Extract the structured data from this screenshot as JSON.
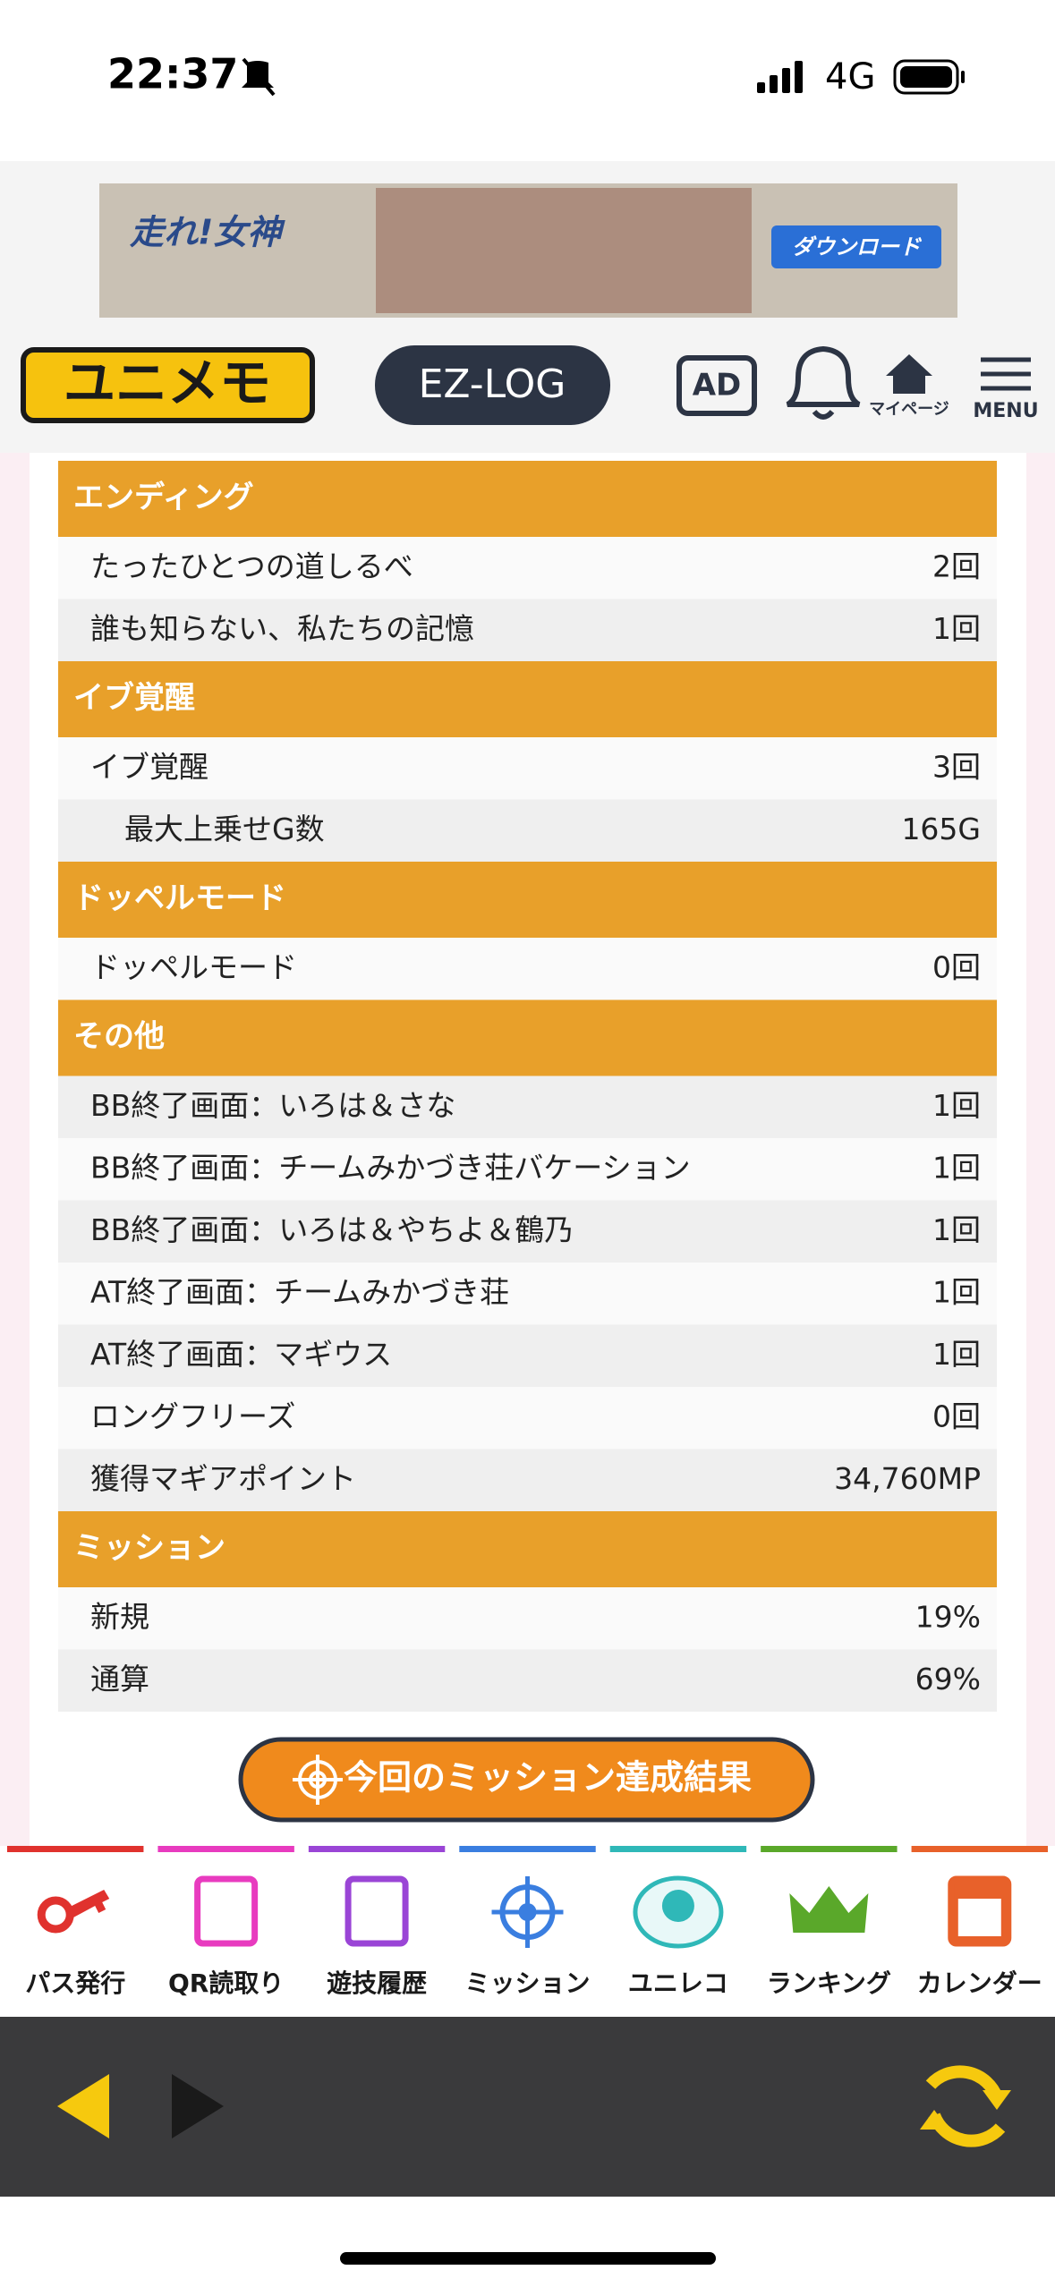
{
  "status_bar": {
    "time": "22:37",
    "network": "4G"
  },
  "banner": {
    "title": "走れ!女神",
    "button": "ダウンロード"
  },
  "header": {
    "logo": "ユニメモ",
    "ez_log": "EZ-LOG",
    "ad": "AD",
    "mypage": "マイページ",
    "menu": "MENU"
  },
  "sections": [
    {
      "title": "エンディング",
      "rows": [
        {
          "label": "たったひとつの道しるべ",
          "value": "2回"
        },
        {
          "label": "誰も知らない、私たちの記憶",
          "value": "1回"
        }
      ]
    },
    {
      "title": "イブ覚醒",
      "rows": [
        {
          "label": "イブ覚醒",
          "value": "3回"
        },
        {
          "label": "最大上乗せG数",
          "value": "165G",
          "indent": true
        }
      ]
    },
    {
      "title": "ドッペルモード",
      "rows": [
        {
          "label": "ドッペルモード",
          "value": "0回"
        }
      ]
    },
    {
      "title": "その他",
      "rows": [
        {
          "label": "BB終了画面：いろは＆さな",
          "value": "1回"
        },
        {
          "label": "BB終了画面：チームみかづき荘バケーション",
          "value": "1回"
        },
        {
          "label": "BB終了画面：いろは＆やちよ＆鶴乃",
          "value": "1回"
        },
        {
          "label": "AT終了画面：チームみかづき荘",
          "value": "1回"
        },
        {
          "label": "AT終了画面：マギウス",
          "value": "1回"
        },
        {
          "label": "ロングフリーズ",
          "value": "0回"
        },
        {
          "label": "獲得マギアポイント",
          "value": "34,760MP"
        }
      ]
    },
    {
      "title": "ミッション",
      "rows": [
        {
          "label": "新規",
          "value": "19%"
        },
        {
          "label": "通算",
          "value": "69%"
        }
      ]
    }
  ],
  "mission_button": "今回のミッション達成結果",
  "bottom_nav": [
    {
      "label": "パス発行",
      "color": "#e0322e"
    },
    {
      "label": "QR読取り",
      "color": "#e83bbf"
    },
    {
      "label": "遊技履歴",
      "color": "#9a45d6"
    },
    {
      "label": "ミッション",
      "color": "#3a7ee0"
    },
    {
      "label": "ユニレコ",
      "color": "#2fb8b8"
    },
    {
      "label": "ランキング",
      "color": "#5aa82a"
    },
    {
      "label": "カレンダー",
      "color": "#e8612a"
    }
  ]
}
